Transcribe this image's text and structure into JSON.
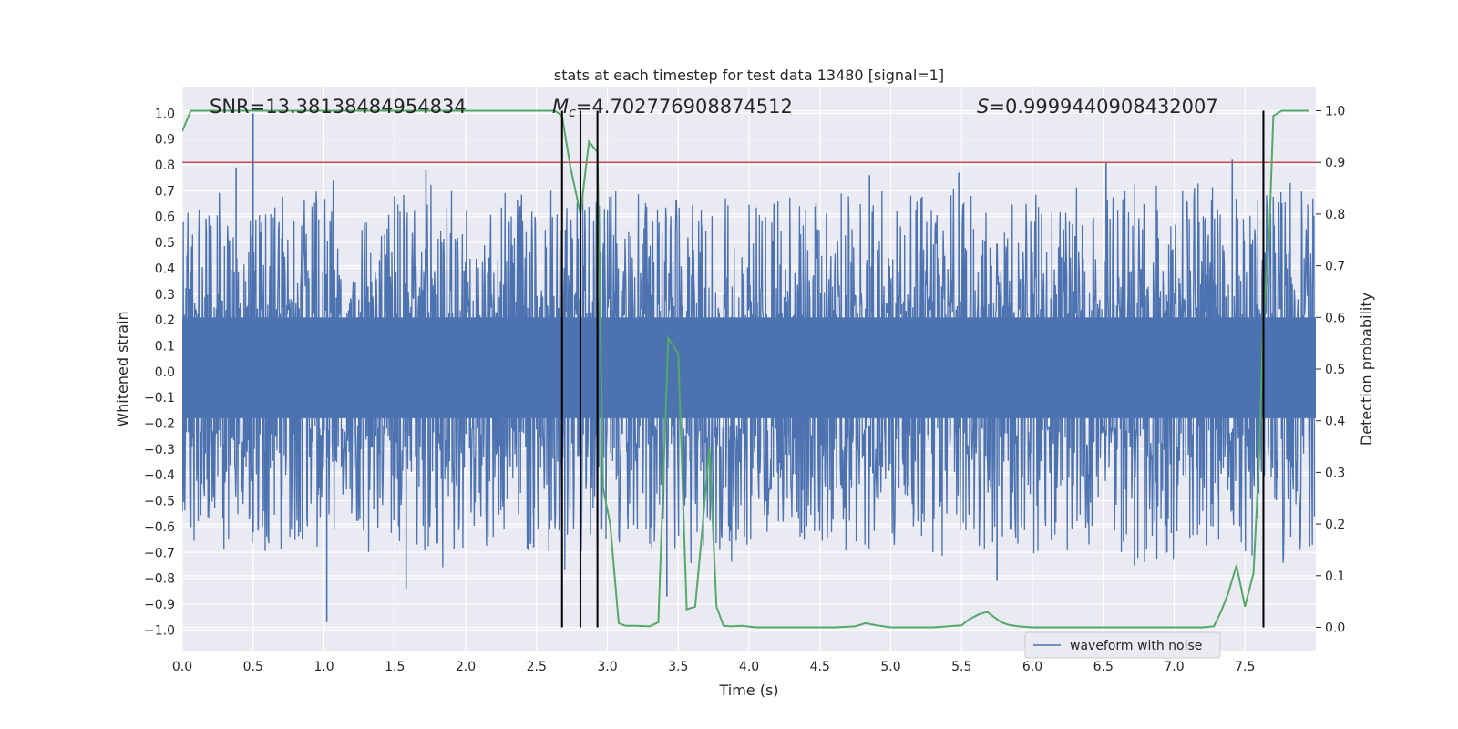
{
  "chart_data": {
    "type": "line",
    "title": "stats at each timestep for test data 13480 [signal=1]",
    "xlabel": "Time (s)",
    "ylabel": "Whitened strain",
    "y2label": "Detection probability",
    "xlim": [
      0.0,
      8.0
    ],
    "ylim": [
      -1.08,
      1.1
    ],
    "y2lim": [
      -0.045,
      1.045
    ],
    "x_ticks": [
      0.0,
      0.5,
      1.0,
      1.5,
      2.0,
      2.5,
      3.0,
      3.5,
      4.0,
      4.5,
      5.0,
      5.5,
      6.0,
      6.5,
      7.0,
      7.5
    ],
    "x_tick_labels": [
      "0.0",
      "0.5",
      "1.0",
      "1.5",
      "2.0",
      "2.5",
      "3.0",
      "3.5",
      "4.0",
      "4.5",
      "5.0",
      "5.5",
      "6.0",
      "6.5",
      "7.0",
      "7.5"
    ],
    "y_ticks": [
      -1.0,
      -0.9,
      -0.8,
      -0.7,
      -0.6,
      -0.5,
      -0.4,
      -0.3,
      -0.2,
      -0.1,
      0.0,
      0.1,
      0.2,
      0.3,
      0.4,
      0.5,
      0.6,
      0.7,
      0.8,
      0.9,
      1.0
    ],
    "y_tick_labels": [
      "−1.0",
      "−0.9",
      "−0.8",
      "−0.7",
      "−0.6",
      "−0.5",
      "−0.4",
      "−0.3",
      "−0.2",
      "−0.1",
      "0.0",
      "0.1",
      "0.2",
      "0.3",
      "0.4",
      "0.5",
      "0.6",
      "0.7",
      "0.8",
      "0.9",
      "1.0"
    ],
    "y2_ticks": [
      0.0,
      0.1,
      0.2,
      0.3,
      0.4,
      0.5,
      0.6,
      0.7,
      0.8,
      0.9,
      1.0
    ],
    "y2_tick_labels": [
      "0.0",
      "0.1",
      "0.2",
      "0.3",
      "0.4",
      "0.5",
      "0.6",
      "0.7",
      "0.8",
      "0.9",
      "1.0"
    ],
    "grid": true,
    "annotations": {
      "snr": "SNR=13.38138484954834",
      "mc_symbol": "M",
      "mc_sub": "c",
      "mc_value": "=4.702776908874512",
      "s_symbol": "S",
      "s_value": "=0.9999440908432007"
    },
    "threshold": {
      "axis": "y2",
      "value": 0.9,
      "color": "#c44e52"
    },
    "vertical_lines": [
      2.68,
      2.81,
      2.93,
      7.63
    ],
    "legend": {
      "label": "waveform with noise",
      "location": "lower-right"
    },
    "series": [
      {
        "name": "waveform with noise",
        "axis": "y",
        "color": "#4c72b0",
        "kind": "dense noise",
        "core_band": [
          -0.18,
          0.21
        ],
        "spikes": [
          {
            "x": 0.5,
            "y": 1.0
          },
          {
            "x": 0.38,
            "y": 0.79
          },
          {
            "x": 1.72,
            "y": 0.78
          },
          {
            "x": 6.52,
            "y": 0.81
          },
          {
            "x": 7.41,
            "y": 0.82
          },
          {
            "x": 5.48,
            "y": 0.77
          },
          {
            "x": 4.85,
            "y": 0.76
          },
          {
            "x": 1.02,
            "y": -0.97
          },
          {
            "x": 1.58,
            "y": -0.84
          },
          {
            "x": 5.75,
            "y": -0.81
          },
          {
            "x": 6.72,
            "y": -0.75
          },
          {
            "x": 3.42,
            "y": -0.87
          },
          {
            "x": 2.48,
            "y": -0.68
          },
          {
            "x": 6.95,
            "y": -0.7
          },
          {
            "x": 5.88,
            "y": -0.28
          }
        ]
      },
      {
        "name": "detection probability",
        "axis": "y2",
        "color": "#55a868",
        "x": [
          0.0,
          0.06,
          0.12,
          0.5,
          1.0,
          1.5,
          2.0,
          2.5,
          2.63,
          2.68,
          2.74,
          2.81,
          2.87,
          2.93,
          2.97,
          3.02,
          3.08,
          3.13,
          3.2,
          3.3,
          3.36,
          3.43,
          3.5,
          3.56,
          3.62,
          3.67,
          3.72,
          3.77,
          3.82,
          3.87,
          3.95,
          4.05,
          4.12,
          4.2,
          4.3,
          4.45,
          4.6,
          4.75,
          4.82,
          4.9,
          5.0,
          5.1,
          5.2,
          5.3,
          5.4,
          5.5,
          5.55,
          5.62,
          5.68,
          5.73,
          5.78,
          5.83,
          5.9,
          6.0,
          6.2,
          6.4,
          6.5,
          6.7,
          7.0,
          7.2,
          7.28,
          7.33,
          7.38,
          7.44,
          7.5,
          7.56,
          7.6,
          7.63,
          7.67,
          7.7,
          7.76,
          7.86,
          7.95
        ],
        "y": [
          0.96,
          1.0,
          1.0,
          1.0,
          1.0,
          1.0,
          1.0,
          1.0,
          1.0,
          0.99,
          0.89,
          0.8,
          0.94,
          0.92,
          0.27,
          0.2,
          0.008,
          0.003,
          0.003,
          0.002,
          0.01,
          0.56,
          0.53,
          0.035,
          0.04,
          0.19,
          0.35,
          0.04,
          0.003,
          0.002,
          0.003,
          0.0,
          0.0,
          0.0,
          0.0,
          0.0,
          0.0,
          0.002,
          0.008,
          0.004,
          0.0,
          0.0,
          0.0,
          0.0,
          0.002,
          0.004,
          0.015,
          0.025,
          0.03,
          0.02,
          0.01,
          0.005,
          0.002,
          0.0,
          0.0,
          0.0,
          0.0,
          0.0,
          0.0,
          0.0,
          0.002,
          0.03,
          0.065,
          0.12,
          0.04,
          0.105,
          0.33,
          0.6,
          0.75,
          0.99,
          1.0,
          1.0,
          1.0
        ]
      }
    ]
  }
}
